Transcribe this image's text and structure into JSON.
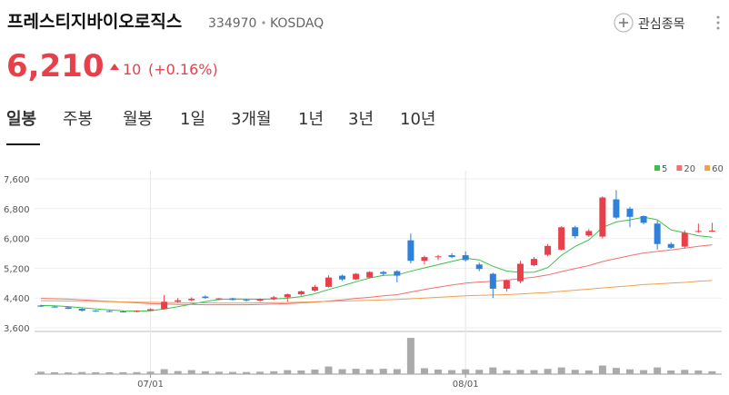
{
  "header": {
    "name": "프레스티지바이오로직스",
    "code": "334970",
    "market": "KOSDAQ",
    "watch_button": "관심종목",
    "price": "6,210",
    "change": "10",
    "change_rate": "(+0.16%)"
  },
  "tabs": [
    "일봉",
    "주봉",
    "월봉",
    "1일",
    "3개월",
    "1년",
    "3년",
    "10년"
  ],
  "chart_data": {
    "type": "candlestick",
    "categories": [
      null,
      null,
      null,
      null,
      null,
      null,
      null,
      null,
      "07/01",
      null,
      null,
      null,
      null,
      null,
      null,
      null,
      null,
      null,
      null,
      null,
      null,
      null,
      null,
      null,
      null,
      null,
      null,
      null,
      null,
      null,
      null,
      "08/01",
      null,
      null,
      null,
      null,
      null,
      null,
      null,
      null,
      null,
      null,
      null,
      null,
      null,
      null,
      null,
      null,
      null,
      null
    ],
    "open": [
      4200,
      4170,
      4150,
      4110,
      4060,
      4050,
      4040,
      4030,
      4060,
      4100,
      4300,
      4340,
      4440,
      4370,
      4390,
      4350,
      4330,
      4370,
      4420,
      4500,
      4600,
      4700,
      5000,
      4900,
      4950,
      5100,
      5120,
      5950,
      5400,
      5500,
      5550,
      5550,
      5300,
      5050,
      4650,
      4850,
      5280,
      5560,
      5700,
      6300,
      6080,
      6050,
      7050,
      6800,
      6600,
      6400,
      5850,
      5780,
      6180,
      6200
    ],
    "high": [
      4220,
      4190,
      4170,
      4130,
      4080,
      4070,
      4060,
      4070,
      4120,
      4480,
      4400,
      4420,
      4470,
      4400,
      4410,
      4380,
      4390,
      4460,
      4520,
      4600,
      4750,
      5010,
      5030,
      5070,
      5120,
      5130,
      5150,
      6130,
      5540,
      5560,
      5600,
      5650,
      5350,
      5080,
      4900,
      5400,
      5500,
      5850,
      6330,
      6340,
      6250,
      7130,
      7300,
      6850,
      6620,
      6480,
      5900,
      6220,
      6400,
      6420
    ],
    "low": [
      4160,
      4140,
      4100,
      4040,
      4030,
      4020,
      4010,
      4020,
      4050,
      4090,
      4270,
      4310,
      4380,
      4340,
      4330,
      4310,
      4300,
      4340,
      4300,
      4460,
      4570,
      4680,
      4860,
      4880,
      4930,
      5000,
      4820,
      5330,
      5300,
      5420,
      5470,
      5380,
      5120,
      4400,
      4580,
      4800,
      5250,
      5520,
      5680,
      6000,
      6040,
      6000,
      6520,
      6300,
      6380,
      5700,
      5720,
      5740,
      6150,
      6180
    ],
    "close": [
      4170,
      4150,
      4110,
      4060,
      4050,
      4040,
      4030,
      4060,
      4100,
      4300,
      4340,
      4380,
      4400,
      4390,
      4350,
      4330,
      4370,
      4420,
      4500,
      4580,
      4700,
      4950,
      4900,
      5050,
      5100,
      5050,
      5000,
      5400,
      5500,
      5520,
      5500,
      5420,
      5180,
      4650,
      4870,
      5320,
      5450,
      5800,
      6300,
      6060,
      6200,
      7100,
      6560,
      6580,
      6420,
      5850,
      5750,
      6150,
      6200,
      6210
    ],
    "up_color": "#e8404a",
    "down_color": "#2f80d8",
    "series": [
      {
        "name": "5",
        "color": "#3cc04a",
        "values": [
          4200,
          4190,
          4170,
          4140,
          4108,
          4082,
          4058,
          4048,
          4056,
          4106,
          4166,
          4236,
          4304,
          4362,
          4372,
          4370,
          4368,
          4372,
          4394,
          4440,
          4514,
          4630,
          4726,
          4836,
          4940,
          5010,
          5020,
          5120,
          5210,
          5294,
          5384,
          5468,
          5424,
          5254,
          5124,
          5088,
          5094,
          5218,
          5548,
          5786,
          5962,
          6292,
          6444,
          6500,
          6572,
          6502,
          6232,
          6150,
          6074,
          6032
        ]
      },
      {
        "name": "20",
        "color": "#f07070",
        "values": [
          4390,
          4380,
          4370,
          4350,
          4330,
          4310,
          4290,
          4270,
          4250,
          4240,
          4230,
          4230,
          4220,
          4220,
          4220,
          4220,
          4230,
          4240,
          4250,
          4270,
          4290,
          4320,
          4350,
          4390,
          4420,
          4460,
          4490,
          4560,
          4630,
          4690,
          4750,
          4800,
          4830,
          4850,
          4880,
          4920,
          4960,
          5020,
          5110,
          5190,
          5270,
          5380,
          5460,
          5540,
          5610,
          5650,
          5690,
          5740,
          5790,
          5830
        ]
      },
      {
        "name": "60",
        "color": "#f0a050",
        "values": [
          4330,
          4325,
          4320,
          4315,
          4310,
          4300,
          4295,
          4290,
          4285,
          4280,
          4275,
          4270,
          4270,
          4265,
          4265,
          4265,
          4270,
          4275,
          4280,
          4290,
          4300,
          4310,
          4320,
          4330,
          4340,
          4350,
          4360,
          4380,
          4400,
          4420,
          4440,
          4460,
          4470,
          4480,
          4490,
          4510,
          4530,
          4550,
          4580,
          4610,
          4640,
          4670,
          4700,
          4730,
          4760,
          4780,
          4800,
          4820,
          4850,
          4870
        ]
      }
    ],
    "volume": [
      250000,
      200000,
      180000,
      220000,
      200000,
      190000,
      200000,
      210000,
      260000,
      520000,
      320000,
      420000,
      300000,
      250000,
      230000,
      220000,
      250000,
      300000,
      420000,
      380000,
      480000,
      800000,
      520000,
      560000,
      500000,
      560000,
      520000,
      3800000,
      620000,
      480000,
      420000,
      500000,
      450000,
      700000,
      400000,
      450000,
      420000,
      550000,
      700000,
      450000,
      380000,
      900000,
      650000,
      500000,
      420000,
      700000,
      380000,
      450000,
      380000,
      300000
    ],
    "volume_color": "#aaaaaa",
    "volume_ylim": [
      0,
      4000000
    ],
    "ylim": [
      3600,
      7600
    ],
    "yticks": [
      {
        "value": 3600,
        "label": "3,600"
      },
      {
        "value": 4400,
        "label": "4,400"
      },
      {
        "value": 5200,
        "label": "5,200"
      },
      {
        "value": 6000,
        "label": "6,000"
      },
      {
        "value": 6800,
        "label": "6,800"
      },
      {
        "value": 7600,
        "label": "7,600"
      }
    ],
    "grid": true
  }
}
